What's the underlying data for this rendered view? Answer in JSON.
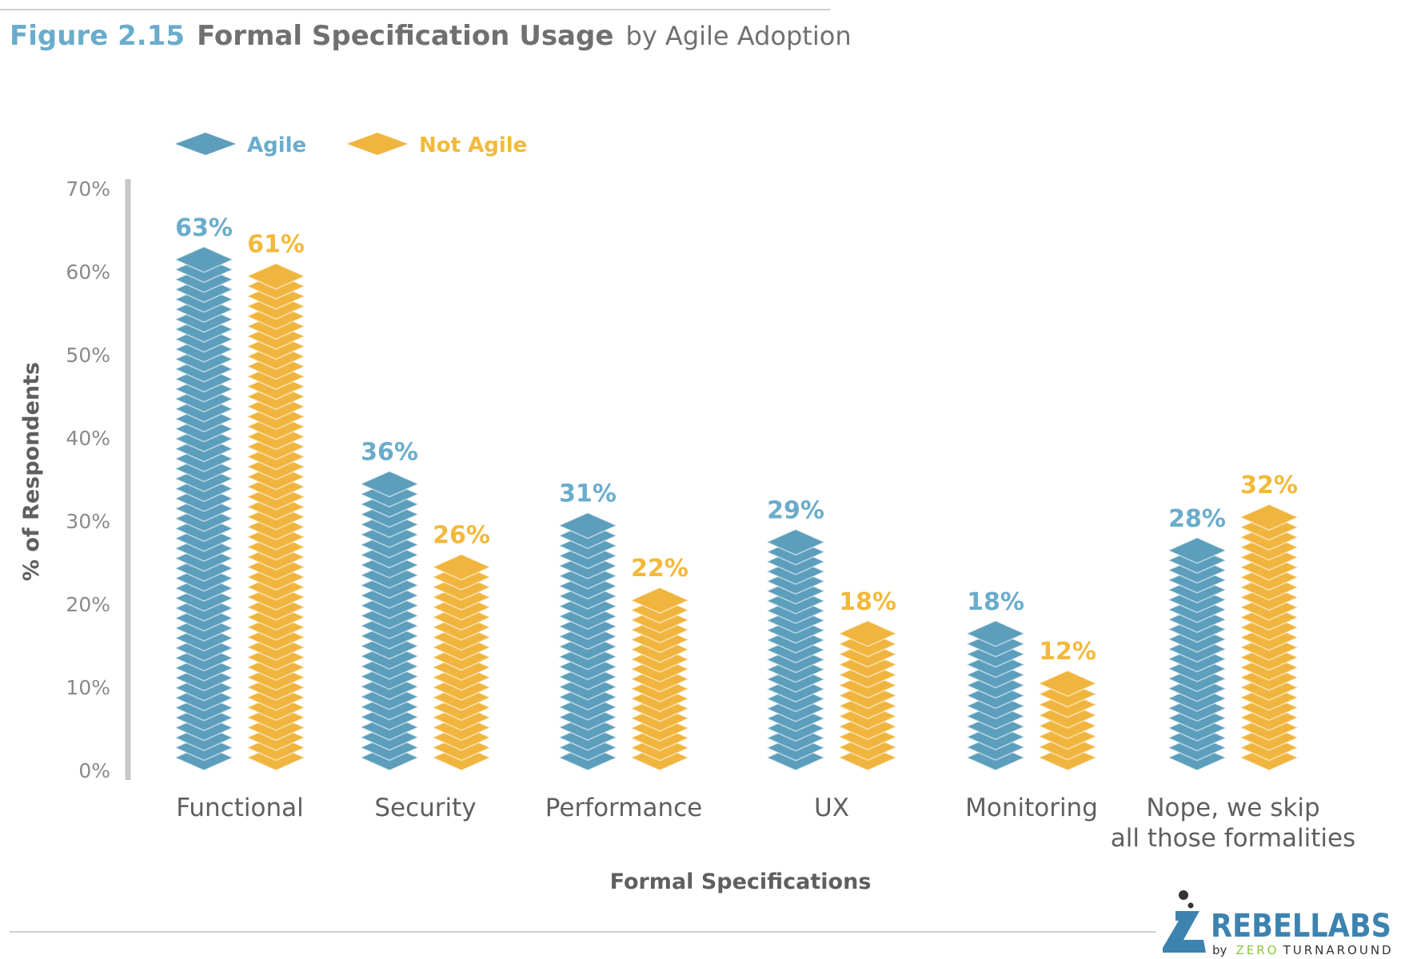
{
  "title": {
    "figure": "Figure 2.15",
    "main": "Formal Specification Usage",
    "sub": "by Agile Adoption"
  },
  "colors": {
    "agile": "#5c9ebc",
    "not_agile": "#f0b53f",
    "axis": "#c8c8c8"
  },
  "chart_data": {
    "type": "bar",
    "title": "Formal Specification Usage by Agile Adoption",
    "xlabel": "Formal Specifications",
    "ylabel": "% of Respondents",
    "ylim": [
      0,
      70
    ],
    "yticks": [
      "0%",
      "10%",
      "20%",
      "30%",
      "40%",
      "50%",
      "60%",
      "70%"
    ],
    "categories": [
      [
        "Functional"
      ],
      [
        "Security"
      ],
      [
        "Performance"
      ],
      [
        "UX"
      ],
      [
        "Monitoring"
      ],
      [
        "Nope, we skip",
        "all those formalities"
      ]
    ],
    "series": [
      {
        "name": "Agile",
        "values": [
          63,
          36,
          31,
          29,
          18,
          28
        ],
        "labels": [
          "63%",
          "36%",
          "31%",
          "29%",
          "18%",
          "28%"
        ]
      },
      {
        "name": "Not Agile",
        "values": [
          61,
          26,
          22,
          18,
          12,
          32
        ],
        "labels": [
          "61%",
          "26%",
          "22%",
          "18%",
          "12%",
          "32%"
        ]
      }
    ],
    "legend": "top-left",
    "grid": false
  },
  "logo": {
    "brand": "REBELLABS",
    "by": "by",
    "zero": "ZERO",
    "turnaround": "TURNAROUND"
  }
}
